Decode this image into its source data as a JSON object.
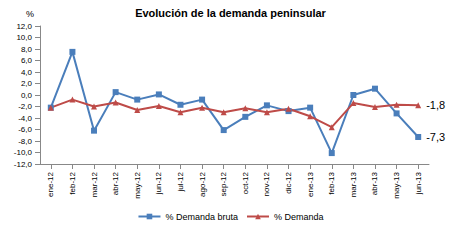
{
  "chart_data": {
    "type": "line",
    "title": "Evolución de la demanda peninsular",
    "y_label": "%",
    "categories": [
      "ene-12",
      "feb-12",
      "mar-12",
      "abr-12",
      "may-12",
      "jun-12",
      "jul-12",
      "ago-12",
      "sep-12",
      "oct-12",
      "nov-12",
      "dic-12",
      "ene-13",
      "feb-13",
      "mar-13",
      "abr-13",
      "may-13",
      "jun-13"
    ],
    "series": [
      {
        "name": "% Demanda bruta",
        "color": "#4a7ebb",
        "marker": "square",
        "values": [
          -2.2,
          7.5,
          -6.2,
          0.5,
          -0.8,
          0.1,
          -1.7,
          -0.8,
          -6.1,
          -3.8,
          -1.8,
          -2.8,
          -2.2,
          -10.1,
          0.0,
          1.1,
          -3.2,
          -7.3
        ],
        "value_labels": [
          null,
          null,
          null,
          null,
          null,
          null,
          null,
          null,
          null,
          null,
          null,
          null,
          null,
          null,
          null,
          null,
          null,
          "-7,3"
        ]
      },
      {
        "name": "% Demanda",
        "color": "#be4b48",
        "marker": "triangle",
        "values": [
          -2.2,
          -0.8,
          -2.0,
          -1.3,
          -2.6,
          -1.9,
          -3.0,
          -2.2,
          -3.0,
          -2.3,
          -3.0,
          -2.4,
          -3.7,
          -5.6,
          -1.4,
          -2.1,
          -1.7,
          -1.8
        ],
        "value_labels": [
          null,
          null,
          null,
          null,
          null,
          null,
          null,
          null,
          null,
          null,
          null,
          null,
          null,
          null,
          null,
          null,
          null,
          "-1,8"
        ]
      }
    ],
    "ylim": [
      -12,
      12
    ],
    "yticks": [
      {
        "value": -12,
        "label": "-12,0"
      },
      {
        "value": -10,
        "label": "-10,0"
      },
      {
        "value": -8,
        "label": "-8,0"
      },
      {
        "value": -6,
        "label": "-6,0"
      },
      {
        "value": -4,
        "label": "-4,0"
      },
      {
        "value": -2,
        "label": "-2,0"
      },
      {
        "value": 0,
        "label": "0,0"
      },
      {
        "value": 2,
        "label": "2,0"
      },
      {
        "value": 4,
        "label": "4,0"
      },
      {
        "value": 6,
        "label": "6,0"
      },
      {
        "value": 8,
        "label": "8,0"
      },
      {
        "value": 10,
        "label": "10,0"
      },
      {
        "value": 12,
        "label": "12,0"
      }
    ],
    "grid": false,
    "legend": "bottom"
  }
}
